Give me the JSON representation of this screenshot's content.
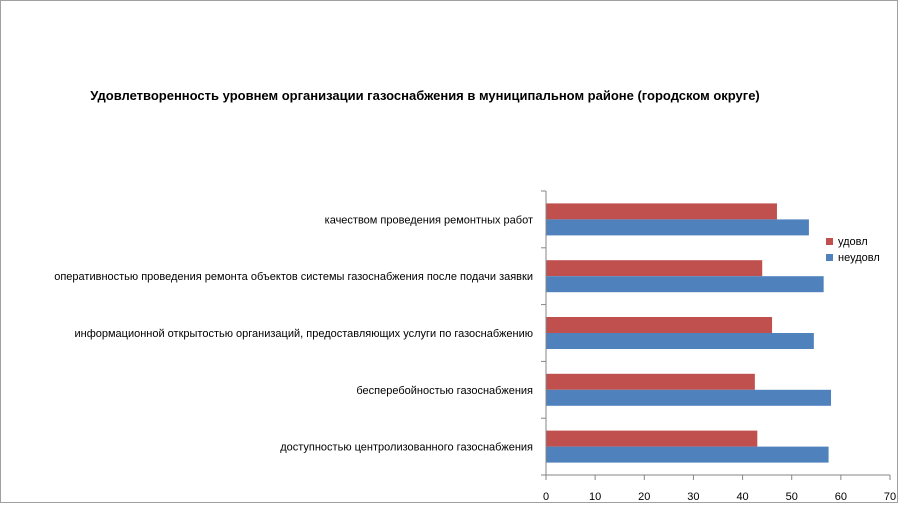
{
  "chart_data": {
    "type": "bar",
    "orientation": "horizontal",
    "title": "Удовлетворенность уровнем организации газоснабжения в муниципальном районе (городском округе)",
    "categories": [
      "качеством проведения ремонтных работ",
      "оперативностью проведения ремонта объектов системы газоснабжения после подачи заявки",
      "информационной открытостью организаций, предоставляющих услуги по газоснабжению",
      "бесперебойностью газоснабжения",
      "доступностью центролизованного газоснабжения"
    ],
    "series": [
      {
        "name": "удовл",
        "color": "#c0504d",
        "values": [
          47,
          44,
          46,
          42.5,
          43
        ]
      },
      {
        "name": "неудовл",
        "color": "#4f81bd",
        "values": [
          53.5,
          56.5,
          54.5,
          58,
          57.5
        ]
      }
    ],
    "xlim": [
      0,
      70
    ],
    "xticks": [
      "0",
      "10",
      "20",
      "30",
      "40",
      "50",
      "60",
      "70"
    ],
    "grid": false,
    "legend_position": "right"
  }
}
